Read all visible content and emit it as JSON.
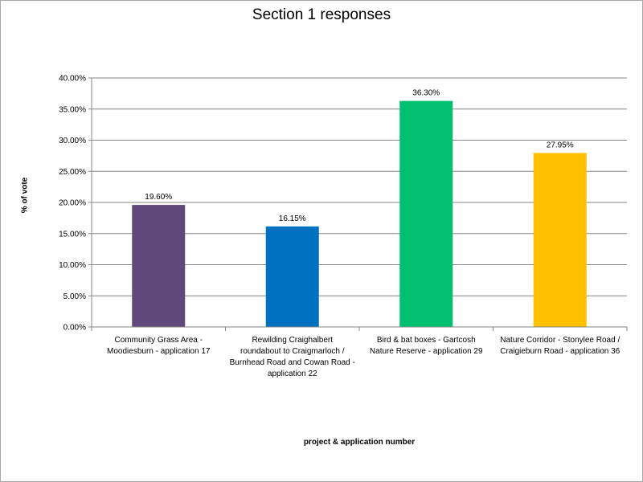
{
  "chart_data": {
    "type": "bar",
    "title": "Section 1 responses",
    "xlabel": "project & application number",
    "ylabel": "% of vote",
    "ylim": [
      0,
      40
    ],
    "y_ticks": [
      0,
      5,
      10,
      15,
      20,
      25,
      30,
      35,
      40
    ],
    "y_tick_labels": [
      "0.00%",
      "5.00%",
      "10.00%",
      "15.00%",
      "20.00%",
      "25.00%",
      "30.00%",
      "35.00%",
      "40.00%"
    ],
    "grid": true,
    "legend": "none",
    "categories": [
      [
        "Community Grass Area -",
        "Moodiesburn - application 17"
      ],
      [
        "Rewilding Craighalbert",
        "roundabout to Craigmarloch /",
        "Burnhead Road and Cowan Road -",
        "application 22"
      ],
      [
        "Bird & bat boxes - Gartcosh",
        "Nature Reserve - application 29"
      ],
      [
        "Nature Corridor - Stonylee Road /",
        "Craigieburn Road - application 36"
      ]
    ],
    "values": [
      19.6,
      16.15,
      36.3,
      27.95
    ],
    "data_labels": [
      "19.60%",
      "16.15%",
      "36.30%",
      "27.95%"
    ],
    "colors": [
      "#604a7b",
      "#0070c0",
      "#00c070",
      "#ffc000"
    ]
  }
}
